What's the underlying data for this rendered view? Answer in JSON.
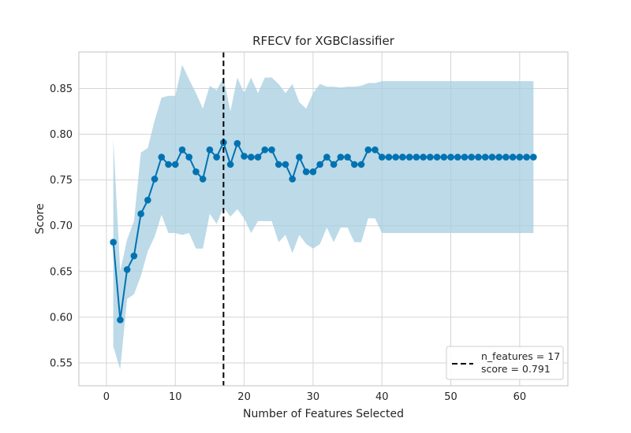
{
  "chart_data": {
    "type": "line",
    "title": "RFECV for XGBClassifier",
    "xlabel": "Number of Features Selected",
    "ylabel": "Score",
    "xlim": [
      -4,
      67
    ],
    "ylim": [
      0.525,
      0.89
    ],
    "xticks": [
      0,
      10,
      20,
      30,
      40,
      50,
      60
    ],
    "yticks": [
      0.55,
      0.6,
      0.65,
      0.7,
      0.75,
      0.8,
      0.85
    ],
    "ytick_labels": [
      "0.55",
      "0.60",
      "0.65",
      "0.70",
      "0.75",
      "0.80",
      "0.85"
    ],
    "grid": true,
    "legend_position": "bottom-right",
    "colors": {
      "line": "#0072B2",
      "band": "#a6cde0",
      "vline": "#000000",
      "grid": "#d5d5d5",
      "axes": "#cccccc"
    },
    "series": [
      {
        "x": [
          1,
          2,
          3,
          4,
          5,
          6,
          7,
          8,
          9,
          10,
          11,
          12,
          13,
          14,
          15,
          16,
          17,
          18,
          19,
          20,
          21,
          22,
          23,
          24,
          25,
          26,
          27,
          28,
          29,
          30,
          31,
          32,
          33,
          34,
          35,
          36,
          37,
          38,
          39,
          40,
          41,
          42,
          43,
          44,
          45,
          46,
          47,
          48,
          49,
          50,
          51,
          52,
          53,
          54,
          55,
          56,
          57,
          58,
          59,
          60,
          61,
          62
        ],
        "y": [
          0.682,
          0.597,
          0.652,
          0.667,
          0.713,
          0.728,
          0.751,
          0.775,
          0.767,
          0.767,
          0.783,
          0.775,
          0.759,
          0.751,
          0.783,
          0.775,
          0.791,
          0.767,
          0.79,
          0.776,
          0.775,
          0.775,
          0.783,
          0.783,
          0.767,
          0.767,
          0.751,
          0.775,
          0.759,
          0.759,
          0.767,
          0.775,
          0.767,
          0.775,
          0.775,
          0.767,
          0.767,
          0.783,
          0.783,
          0.775,
          0.775,
          0.775,
          0.775,
          0.775,
          0.775,
          0.775,
          0.775,
          0.775,
          0.775,
          0.775,
          0.775,
          0.775,
          0.775,
          0.775,
          0.775,
          0.775,
          0.775,
          0.775,
          0.775,
          0.775,
          0.775,
          0.775
        ],
        "upper": [
          0.795,
          0.65,
          0.685,
          0.705,
          0.78,
          0.785,
          0.815,
          0.84,
          0.842,
          0.842,
          0.876,
          0.86,
          0.845,
          0.828,
          0.853,
          0.848,
          0.862,
          0.825,
          0.862,
          0.845,
          0.862,
          0.845,
          0.862,
          0.862,
          0.855,
          0.845,
          0.855,
          0.835,
          0.828,
          0.845,
          0.855,
          0.852,
          0.852,
          0.851,
          0.852,
          0.852,
          0.853,
          0.856,
          0.856,
          0.858,
          0.858,
          0.858,
          0.858,
          0.858,
          0.858,
          0.858,
          0.858,
          0.858,
          0.858,
          0.858,
          0.858,
          0.858,
          0.858,
          0.858,
          0.858,
          0.858,
          0.858,
          0.858,
          0.858,
          0.858,
          0.858,
          0.858
        ],
        "lower": [
          0.568,
          0.543,
          0.62,
          0.625,
          0.645,
          0.672,
          0.688,
          0.712,
          0.692,
          0.692,
          0.69,
          0.692,
          0.675,
          0.675,
          0.713,
          0.702,
          0.72,
          0.71,
          0.718,
          0.708,
          0.692,
          0.705,
          0.705,
          0.705,
          0.682,
          0.69,
          0.67,
          0.69,
          0.68,
          0.675,
          0.68,
          0.698,
          0.682,
          0.698,
          0.698,
          0.682,
          0.682,
          0.708,
          0.708,
          0.692,
          0.692,
          0.692,
          0.692,
          0.692,
          0.692,
          0.692,
          0.692,
          0.692,
          0.692,
          0.692,
          0.692,
          0.692,
          0.692,
          0.692,
          0.692,
          0.692,
          0.692,
          0.692,
          0.692,
          0.692,
          0.692,
          0.692
        ]
      }
    ],
    "selected_n_features": 17,
    "legend": {
      "line1": "n_features = 17",
      "line2": "score = 0.791"
    }
  }
}
